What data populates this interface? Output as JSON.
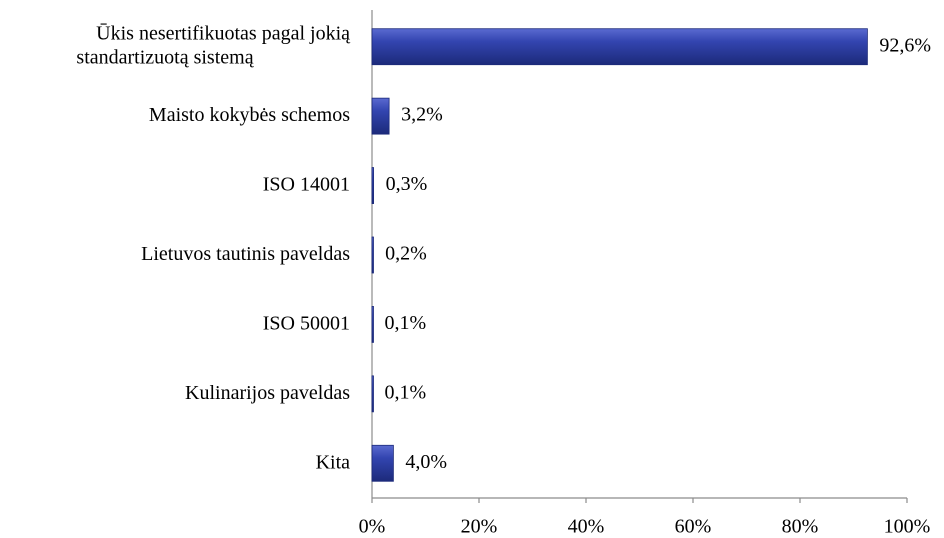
{
  "chart_data": {
    "type": "bar",
    "orientation": "horizontal",
    "categories": [
      "Ūkis nesertifikuotas pagal jokią\nstandartizuotą sistemą",
      "Maisto kokybės schemos",
      "ISO 14001",
      "Lietuvos tautinis paveldas",
      "ISO 50001",
      "Kulinarijos paveldas",
      "Kita"
    ],
    "values": [
      92.6,
      3.2,
      0.3,
      0.2,
      0.1,
      0.1,
      4.0
    ],
    "value_labels": [
      "92,6%",
      "3,2%",
      "0,3%",
      "0,2%",
      "0,1%",
      "0,1%",
      "4,0%"
    ],
    "color": "#2f3f9f",
    "xlim": [
      0,
      100
    ],
    "xticks": [
      {
        "value": 0,
        "label": "0%"
      },
      {
        "value": 20,
        "label": "20%"
      },
      {
        "value": 40,
        "label": "40%"
      },
      {
        "value": 60,
        "label": "60%"
      },
      {
        "value": 80,
        "label": "80%"
      },
      {
        "value": 100,
        "label": "100%"
      }
    ],
    "grid": false
  }
}
